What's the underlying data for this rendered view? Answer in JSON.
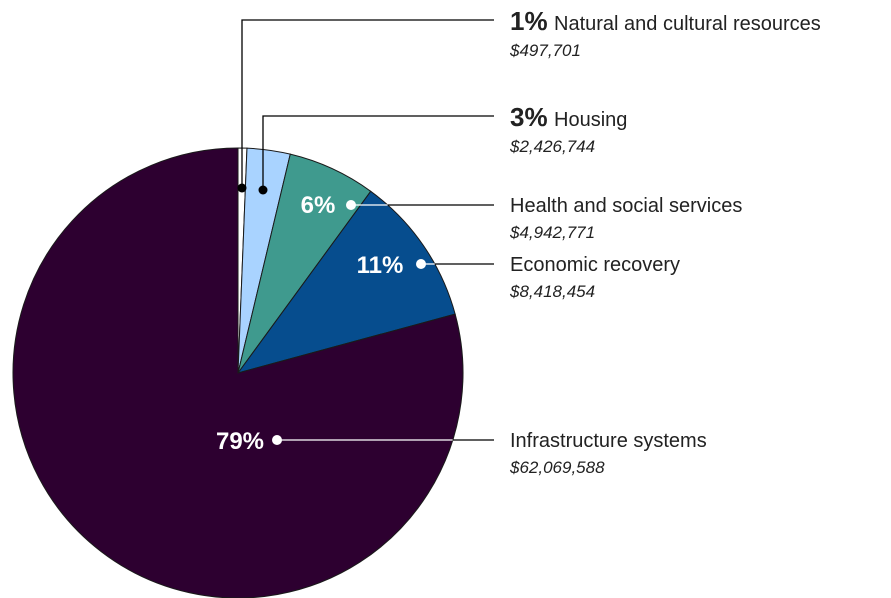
{
  "chart_data": {
    "type": "pie",
    "title": "",
    "slices": [
      {
        "name": "Natural and cultural resources",
        "percent_label": "1%",
        "amount_label": "$497,701",
        "value": 497701,
        "color": "#ffffff"
      },
      {
        "name": "Housing",
        "percent_label": "3%",
        "amount_label": "$2,426,744",
        "value": 2426744,
        "color": "#a9d3ff"
      },
      {
        "name": "Health and social services",
        "percent_label": "6%",
        "amount_label": "$4,942,771",
        "value": 4942771,
        "color": "#3f9a8e"
      },
      {
        "name": "Economic recovery",
        "percent_label": "11%",
        "amount_label": "$8,418,454",
        "value": 8418454,
        "color": "#064d8e"
      },
      {
        "name": "Infrastructure systems",
        "percent_label": "79%",
        "amount_label": "$62,069,588",
        "value": 62069588,
        "color": "#2d0030"
      }
    ]
  }
}
